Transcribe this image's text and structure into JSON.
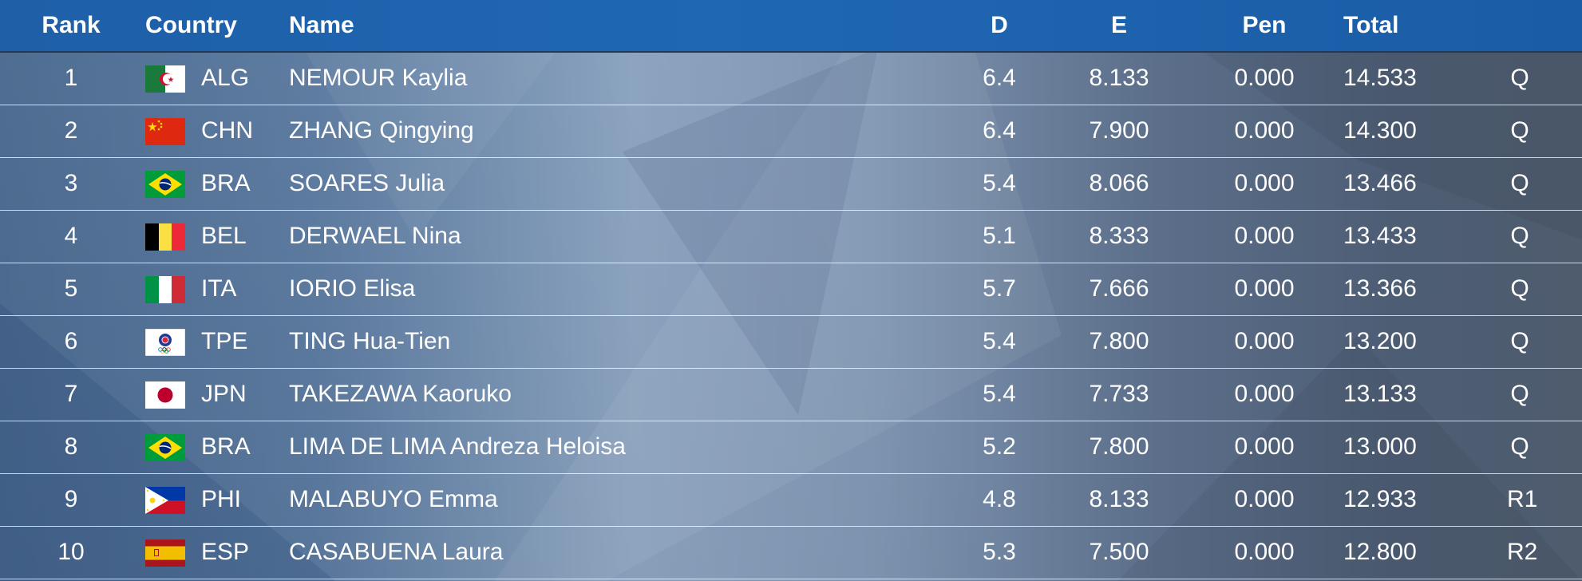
{
  "header": {
    "rank": "Rank",
    "country": "Country",
    "name": "Name",
    "d": "D",
    "e": "E",
    "pen": "Pen",
    "total": "Total"
  },
  "rows": [
    {
      "rank": "1",
      "flag": "algeria-flag",
      "code": "ALG",
      "name": "NEMOUR Kaylia",
      "d": "6.4",
      "e": "8.133",
      "pen": "0.000",
      "total": "14.533",
      "q": "Q"
    },
    {
      "rank": "2",
      "flag": "china-flag",
      "code": "CHN",
      "name": "ZHANG Qingying",
      "d": "6.4",
      "e": "7.900",
      "pen": "0.000",
      "total": "14.300",
      "q": "Q"
    },
    {
      "rank": "3",
      "flag": "brazil-flag",
      "code": "BRA",
      "name": "SOARES Julia",
      "d": "5.4",
      "e": "8.066",
      "pen": "0.000",
      "total": "13.466",
      "q": "Q"
    },
    {
      "rank": "4",
      "flag": "belgium-flag",
      "code": "BEL",
      "name": "DERWAEL Nina",
      "d": "5.1",
      "e": "8.333",
      "pen": "0.000",
      "total": "13.433",
      "q": "Q"
    },
    {
      "rank": "5",
      "flag": "italy-flag",
      "code": "ITA",
      "name": "IORIO Elisa",
      "d": "5.7",
      "e": "7.666",
      "pen": "0.000",
      "total": "13.366",
      "q": "Q"
    },
    {
      "rank": "6",
      "flag": "chinese-taipei-flag",
      "code": "TPE",
      "name": "TING Hua-Tien",
      "d": "5.4",
      "e": "7.800",
      "pen": "0.000",
      "total": "13.200",
      "q": "Q"
    },
    {
      "rank": "7",
      "flag": "japan-flag",
      "code": "JPN",
      "name": "TAKEZAWA Kaoruko",
      "d": "5.4",
      "e": "7.733",
      "pen": "0.000",
      "total": "13.133",
      "q": "Q"
    },
    {
      "rank": "8",
      "flag": "brazil-flag",
      "code": "BRA",
      "name": "LIMA DE LIMA Andreza Heloisa",
      "d": "5.2",
      "e": "7.800",
      "pen": "0.000",
      "total": "13.000",
      "q": "Q"
    },
    {
      "rank": "9",
      "flag": "philippines-flag",
      "code": "PHI",
      "name": "MALABUYO Emma",
      "d": "4.8",
      "e": "8.133",
      "pen": "0.000",
      "total": "12.933",
      "q": "R1"
    },
    {
      "rank": "10",
      "flag": "spain-flag",
      "code": "ESP",
      "name": "CASABUENA Laura",
      "d": "5.3",
      "e": "7.500",
      "pen": "0.000",
      "total": "12.800",
      "q": "R2"
    }
  ],
  "colors": {
    "header_bg": "#1f63ae",
    "text": "#ffffff",
    "row_divider": "#dfe6ee"
  }
}
